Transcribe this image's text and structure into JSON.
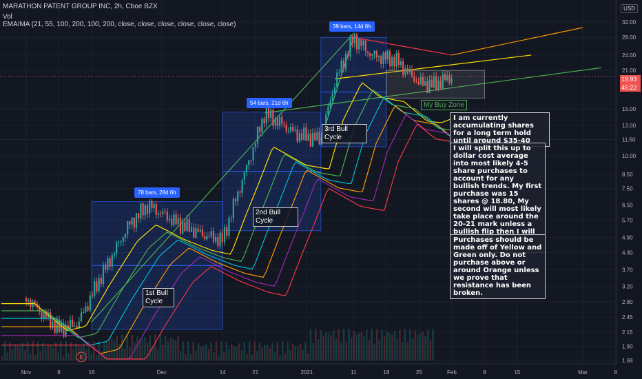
{
  "header": {
    "symbol_line": "MARATHON PATENT GROUP INC, 2h, Cboe BZX",
    "volume_label": "Vol",
    "indicator_line": "EMA/MA (21, 55, 100, 200, 100, 200, close, close, close, close, close, close)"
  },
  "currency_badge": "USD",
  "price_tags": {
    "last_price": "19.93",
    "countdown": "45:22"
  },
  "chart_data": {
    "type": "candlestick",
    "y_axis_scale": "log",
    "y_ticks": [
      "32.00",
      "28.00",
      "24.00",
      "21.00",
      "15.00",
      "13.00",
      "11.50",
      "10.00",
      "8.50",
      "7.50",
      "6.50",
      "5.70",
      "4.90",
      "4.30",
      "3.70",
      "3.20",
      "2.80",
      "2.45",
      "2.15",
      "1.90",
      "1.68"
    ],
    "x_ticks": [
      "Nov",
      "9",
      "16",
      "Dec",
      "14",
      "21",
      "2021",
      "11",
      "18",
      "25",
      "Feb",
      "8",
      "15",
      "Mar",
      "8"
    ],
    "price_path": [
      [
        "2020-11-02",
        2.9
      ],
      [
        "2020-11-09",
        2.2
      ],
      [
        "2020-11-13",
        2.3
      ],
      [
        "2020-11-18",
        3.5
      ],
      [
        "2020-11-24",
        5.5
      ],
      [
        "2020-11-28",
        6.5
      ],
      [
        "2020-12-04",
        5.6
      ],
      [
        "2020-12-10",
        5.0
      ],
      [
        "2020-12-14",
        4.8
      ],
      [
        "2020-12-17",
        7.0
      ],
      [
        "2020-12-20",
        10.0
      ],
      [
        "2020-12-23",
        14.5
      ],
      [
        "2020-12-30",
        12.0
      ],
      [
        "2021-01-04",
        11.5
      ],
      [
        "2021-01-07",
        19.0
      ],
      [
        "2021-01-11",
        28.0
      ],
      [
        "2021-01-15",
        24.0
      ],
      [
        "2021-01-20",
        23.0
      ],
      [
        "2021-01-25",
        18.8
      ],
      [
        "2021-01-28",
        18.5
      ],
      [
        "2021-02-01",
        19.93
      ]
    ],
    "moving_averages": [
      {
        "color": "#ffe000",
        "end_value": 19.0
      },
      {
        "color": "#4caf50",
        "end_value": 17.5
      },
      {
        "color": "#00bcd4",
        "end_value": 16.5
      },
      {
        "color": "#ff9800",
        "end_value": 16.0
      },
      {
        "color": "#9c27b0",
        "end_value": 13.5
      },
      {
        "color": "#f23645",
        "end_value": 12.0
      }
    ],
    "measurement_boxes": [
      {
        "label": "78 bars, 28d 6h",
        "from_date": "2020-11-16",
        "to_date": "2020-12-14",
        "low": 2.2,
        "high": 6.7
      },
      {
        "label": "54 bars, 21d 6h",
        "from_date": "2020-12-14",
        "to_date": "2021-01-04",
        "low": 5.2,
        "high": 14.6
      },
      {
        "label": "39 bars, 14d 6h",
        "from_date": "2021-01-04",
        "to_date": "2021-01-18",
        "low": 10.8,
        "high": 28.0
      }
    ],
    "annotations": {
      "cycle_labels": [
        "1st Bull Cycle",
        "2nd Bull Cycle",
        "3rd Bull Cycle"
      ],
      "buy_zone": "My Buy Zone",
      "notes": [
        "I am currently accumulating shares for a long term hold until around $35-40",
        "I will split this up to dollar cost average into most likely 4-5 share purchases to account for any bullish trends. My first purchase was 15 shares @ 18.80, My second will most likely take place around the 20-21 mark unless a bullish flip then I will enter at that price point.",
        "Purchases should be made off of Yellow and Green only. Do not purchase above or around Orange unless we prove that resistance has been broken."
      ]
    },
    "earnings_marker": "E",
    "colors": {
      "background": "#131722",
      "up": "#26a69a",
      "down": "#ef5350",
      "box": "#2962ff"
    }
  }
}
